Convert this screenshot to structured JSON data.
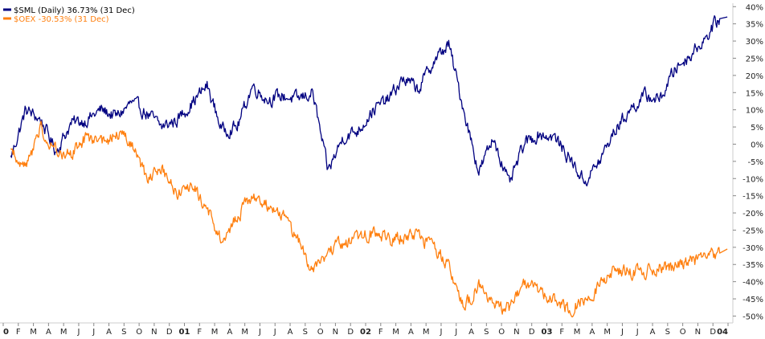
{
  "chart_data": {
    "type": "line",
    "xlabel": "",
    "ylabel": "",
    "y_unit": "%",
    "ylim": [
      -52,
      41
    ],
    "x_range_months": [
      "2000-01",
      "2004-01"
    ],
    "grid": false,
    "legend_placement": "top-left",
    "y_ticks": [
      40,
      35,
      30,
      25,
      20,
      15,
      10,
      5,
      0,
      -5,
      -10,
      -15,
      -20,
      -25,
      -30,
      -35,
      -40,
      -45,
      -50
    ],
    "y_tick_labels": [
      "40%",
      "35%",
      "30%",
      "25%",
      "20%",
      "15%",
      "10%",
      "5%",
      "0%",
      "-5%",
      "-10%",
      "-15%",
      "-20%",
      "-25%",
      "-30%",
      "-35%",
      "-40%",
      "-45%",
      "-50%"
    ],
    "x_tick_labels": [
      "0",
      "F",
      "M",
      "A",
      "M",
      "J",
      "J",
      "A",
      "S",
      "O",
      "N",
      "D",
      "01",
      "F",
      "M",
      "A",
      "M",
      "J",
      "J",
      "A",
      "S",
      "O",
      "N",
      "D",
      "02",
      "F",
      "M",
      "A",
      "M",
      "J",
      "J",
      "A",
      "S",
      "O",
      "N",
      "D",
      "03",
      "F",
      "M",
      "A",
      "M",
      "J",
      "J",
      "A",
      "S",
      "O",
      "N",
      "D",
      "04"
    ],
    "x_year_labels": [
      "0",
      "01",
      "02",
      "03",
      "04"
    ],
    "legend": [
      {
        "text": "$SML (Daily) 36.73% (31 Dec)",
        "color": "#000080"
      },
      {
        "text": "$OEX -30.53% (31 Dec)",
        "color": "#FF7F0E"
      }
    ],
    "series": [
      {
        "name": "$SML (Daily)",
        "color": "#000080",
        "x": [
          "2000-01",
          "2000-02",
          "2000-03",
          "2000-04",
          "2000-05",
          "2000-06",
          "2000-07",
          "2000-08",
          "2000-09",
          "2000-10",
          "2000-11",
          "2000-12",
          "2001-01",
          "2001-02",
          "2001-03",
          "2001-04",
          "2001-05",
          "2001-06",
          "2001-07",
          "2001-08",
          "2001-09",
          "2001-10",
          "2001-11",
          "2001-12",
          "2002-01",
          "2002-02",
          "2002-03",
          "2002-04",
          "2002-05",
          "2002-06",
          "2002-07",
          "2002-08",
          "2002-09",
          "2002-10",
          "2002-11",
          "2002-12",
          "2003-01",
          "2003-02",
          "2003-03",
          "2003-04",
          "2003-05",
          "2003-06",
          "2003-07",
          "2003-08",
          "2003-09",
          "2003-10",
          "2003-11",
          "2003-12"
        ],
        "values": [
          -4,
          10,
          7,
          -2,
          6,
          7,
          10,
          8,
          12,
          9,
          5,
          7,
          12,
          17,
          4,
          5,
          17,
          13,
          14,
          13,
          15,
          -8,
          2,
          4,
          10,
          13,
          19,
          16,
          24,
          29,
          10,
          -8,
          2,
          -12,
          0,
          3,
          2,
          -4,
          -11,
          -5,
          4,
          10,
          14,
          13,
          22,
          26,
          31,
          37
        ]
      },
      {
        "name": "$OEX",
        "color": "#FF7F0E",
        "x": [
          "2000-01",
          "2000-02",
          "2000-03",
          "2000-04",
          "2000-05",
          "2000-06",
          "2000-07",
          "2000-08",
          "2000-09",
          "2000-10",
          "2000-11",
          "2000-12",
          "2001-01",
          "2001-02",
          "2001-03",
          "2001-04",
          "2001-05",
          "2001-06",
          "2001-07",
          "2001-08",
          "2001-09",
          "2001-10",
          "2001-11",
          "2001-12",
          "2002-01",
          "2002-02",
          "2002-03",
          "2002-04",
          "2002-05",
          "2002-06",
          "2002-07",
          "2002-08",
          "2002-09",
          "2002-10",
          "2002-11",
          "2002-12",
          "2003-01",
          "2003-02",
          "2003-03",
          "2003-04",
          "2003-05",
          "2003-06",
          "2003-07",
          "2003-08",
          "2003-09",
          "2003-10",
          "2003-11",
          "2003-12"
        ],
        "values": [
          -2,
          -7,
          5,
          -2,
          -3,
          2,
          0,
          3,
          0,
          -10,
          -7,
          -15,
          -11,
          -19,
          -29,
          -21,
          -15,
          -18,
          -20,
          -28,
          -37,
          -31,
          -29,
          -27,
          -26,
          -28,
          -27,
          -27,
          -30,
          -35,
          -48,
          -41,
          -47,
          -48,
          -41,
          -42,
          -46,
          -48,
          -45,
          -41,
          -37,
          -37,
          -37,
          -36,
          -36,
          -34,
          -34,
          -30.5
        ]
      }
    ]
  }
}
